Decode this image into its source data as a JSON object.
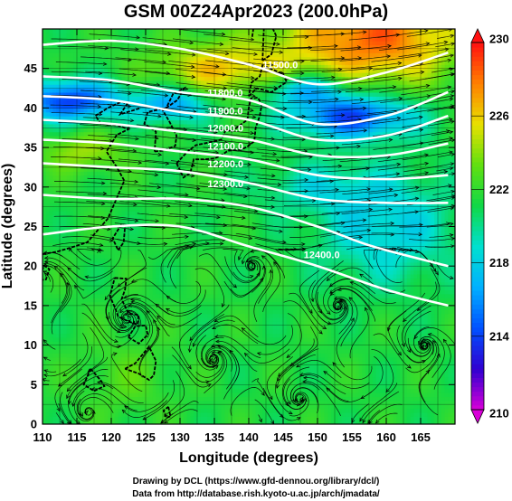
{
  "title": "GSM 00Z24Apr2023 (200.0hPa)",
  "footer": {
    "line1": "Drawing by DCL (https://www.gfd-dennou.org/library/dcl/)",
    "line2": "Data from http://database.rish.kyoto-u.ac.jp/arch/jmadata/"
  },
  "chart_data": {
    "type": "heatmap",
    "xlabel": "Longitude (degrees)",
    "ylabel": "Latitude (degrees)",
    "xlim": [
      110,
      170
    ],
    "ylim": [
      0,
      50
    ],
    "x_ticks": [
      110,
      115,
      120,
      125,
      130,
      135,
      140,
      145,
      150,
      155,
      160,
      165
    ],
    "y_ticks": [
      0,
      5,
      10,
      15,
      20,
      25,
      30,
      35,
      40,
      45
    ],
    "colorbar": {
      "min": 210,
      "max": 230,
      "ticks": [
        210,
        214,
        218,
        222,
        226,
        230
      ],
      "colors": [
        "#d800d8",
        "#3000d0",
        "#0050ff",
        "#00b0ff",
        "#00e0d0",
        "#10d848",
        "#60e010",
        "#e8e000",
        "#ff8000",
        "#ff1010"
      ]
    },
    "contours": [
      {
        "label": "11500.0",
        "label_lon": 142,
        "label_lat": 45,
        "points": [
          [
            110,
            48
          ],
          [
            120,
            48.5
          ],
          [
            130,
            47.5
          ],
          [
            140,
            45.5
          ],
          [
            150,
            43
          ],
          [
            160,
            44.5
          ],
          [
            169,
            47
          ]
        ]
      },
      {
        "label": "11800.0",
        "label_lon": 134,
        "label_lat": 41.5,
        "points": [
          [
            110,
            44
          ],
          [
            120,
            43.5
          ],
          [
            130,
            42
          ],
          [
            140,
            41
          ],
          [
            150,
            38
          ],
          [
            160,
            39
          ],
          [
            169,
            42
          ]
        ]
      },
      {
        "label": "11900.0",
        "label_lon": 134,
        "label_lat": 39.2,
        "points": [
          [
            110,
            41.5
          ],
          [
            120,
            41
          ],
          [
            130,
            39.5
          ],
          [
            140,
            38.5
          ],
          [
            150,
            36
          ],
          [
            160,
            36.5
          ],
          [
            169,
            39
          ]
        ]
      },
      {
        "label": "12000.0",
        "label_lon": 134,
        "label_lat": 37,
        "points": [
          [
            110,
            38.5
          ],
          [
            120,
            38
          ],
          [
            130,
            37
          ],
          [
            140,
            36
          ],
          [
            150,
            34
          ],
          [
            160,
            34
          ],
          [
            169,
            35.5
          ]
        ]
      },
      {
        "label": "12100.0",
        "label_lon": 134,
        "label_lat": 34.7,
        "points": [
          [
            110,
            36
          ],
          [
            120,
            35.5
          ],
          [
            130,
            34.5
          ],
          [
            140,
            33.5
          ],
          [
            150,
            31.5
          ],
          [
            160,
            31
          ],
          [
            169,
            31.5
          ]
        ]
      },
      {
        "label": "12200.0",
        "label_lon": 134,
        "label_lat": 32.5,
        "points": [
          [
            110,
            33
          ],
          [
            120,
            32.5
          ],
          [
            130,
            32
          ],
          [
            140,
            30.5
          ],
          [
            150,
            28.5
          ],
          [
            160,
            28
          ],
          [
            169,
            28
          ]
        ]
      },
      {
        "label": "12300.0",
        "label_lon": 134,
        "label_lat": 30,
        "points": [
          [
            110,
            29
          ],
          [
            120,
            28.5
          ],
          [
            130,
            28.5
          ],
          [
            140,
            27.5
          ],
          [
            150,
            25
          ],
          [
            158,
            22.5
          ],
          [
            169,
            20
          ]
        ]
      },
      {
        "label": "12400.0",
        "label_lon": 148,
        "label_lat": 21,
        "points": [
          [
            110,
            24
          ],
          [
            120,
            25
          ],
          [
            130,
            25
          ],
          [
            140,
            22.5
          ],
          [
            150,
            20
          ],
          [
            160,
            17
          ],
          [
            169,
            15
          ]
        ]
      }
    ],
    "coastlines": "Japan, Korea, China, Taiwan, Philippines, Kamchatka/Sakhalin (lon 110–170, lat 0–50)",
    "overlay": "wind streamlines"
  }
}
